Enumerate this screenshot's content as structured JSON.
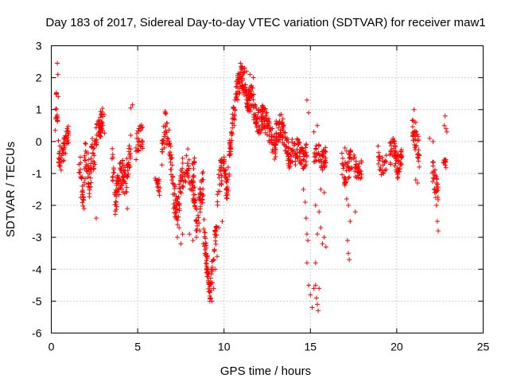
{
  "chart_data": {
    "type": "scatter",
    "title": "Day 183 of 2017, Sidereal Day-to-day VTEC variation (SDTVAR) for receiver maw1",
    "xlabel": "GPS time / hours",
    "ylabel": "SDTVAR / TECUs",
    "xlim": [
      0,
      25
    ],
    "ylim": [
      -6,
      3
    ],
    "xticks": [
      "0",
      "5",
      "10",
      "15",
      "20",
      "25"
    ],
    "yticks": [
      "3",
      "2",
      "1",
      "0",
      "-1",
      "-2",
      "-3",
      "-4",
      "-5",
      "-6"
    ],
    "grid": true,
    "marker": "+",
    "colors": {
      "series": "#ff0000",
      "grid": "#a0a0a0",
      "axes": "#000000"
    },
    "series": [
      {
        "name": "maw1",
        "segments": [
          {
            "t0": 0.2,
            "t1": 1.0,
            "keys": [
              [
                0.2,
                0.3
              ],
              [
                0.3,
                1.4
              ],
              [
                0.35,
                0.6
              ],
              [
                0.45,
                -0.5
              ],
              [
                0.6,
                -0.6
              ],
              [
                0.8,
                0.0
              ],
              [
                1.0,
                0.2
              ]
            ],
            "spread": 0.4,
            "n": 70
          },
          {
            "t0": 1.6,
            "t1": 2.4,
            "keys": [
              [
                1.6,
                -0.5
              ],
              [
                1.8,
                -1.8
              ],
              [
                2.0,
                -0.3
              ],
              [
                2.2,
                -1.2
              ],
              [
                2.4,
                -0.4
              ]
            ],
            "spread": 0.6,
            "n": 70
          },
          {
            "t0": 2.4,
            "t1": 3.1,
            "keys": [
              [
                2.4,
                -0.8
              ],
              [
                2.6,
                0.0
              ],
              [
                2.8,
                0.5
              ],
              [
                3.0,
                0.7
              ],
              [
                3.1,
                0.6
              ]
            ],
            "spread": 0.5,
            "n": 60
          },
          {
            "t0": 3.5,
            "t1": 4.6,
            "keys": [
              [
                3.5,
                -0.5
              ],
              [
                3.7,
                -1.8
              ],
              [
                3.9,
                -1.2
              ],
              [
                4.1,
                -1.0
              ],
              [
                4.3,
                -1.3
              ],
              [
                4.5,
                -0.6
              ],
              [
                4.6,
                -0.2
              ]
            ],
            "spread": 0.5,
            "n": 110
          },
          {
            "t0": 4.9,
            "t1": 5.3,
            "keys": [
              [
                4.9,
                -0.2
              ],
              [
                5.1,
                0.2
              ],
              [
                5.3,
                0.1
              ]
            ],
            "spread": 0.4,
            "n": 30
          },
          {
            "t0": 6.0,
            "t1": 6.3,
            "keys": [
              [
                6.0,
                -1.0
              ],
              [
                6.3,
                -1.5
              ]
            ],
            "spread": 0.3,
            "n": 15
          },
          {
            "t0": 6.4,
            "t1": 7.0,
            "keys": [
              [
                6.4,
                -0.5
              ],
              [
                6.6,
                0.5
              ],
              [
                6.8,
                0.0
              ],
              [
                7.0,
                -1.0
              ]
            ],
            "spread": 0.5,
            "n": 50
          },
          {
            "t0": 7.0,
            "t1": 8.3,
            "keys": [
              [
                7.0,
                -1.5
              ],
              [
                7.3,
                -2.2
              ],
              [
                7.6,
                -1.0
              ],
              [
                7.9,
                -0.6
              ],
              [
                8.1,
                -1.2
              ],
              [
                8.3,
                -1.0
              ]
            ],
            "spread": 0.5,
            "n": 100
          },
          {
            "t0": 8.2,
            "t1": 8.8,
            "keys": [
              [
                8.2,
                -1.5
              ],
              [
                8.4,
                -2.4
              ],
              [
                8.6,
                -2.0
              ],
              [
                8.8,
                -1.3
              ]
            ],
            "spread": 0.5,
            "n": 60
          },
          {
            "t0": 8.8,
            "t1": 9.6,
            "keys": [
              [
                8.8,
                -2.5
              ],
              [
                9.0,
                -3.8
              ],
              [
                9.2,
                -4.8
              ],
              [
                9.4,
                -3.5
              ],
              [
                9.6,
                -2.5
              ]
            ],
            "spread": 0.4,
            "n": 80
          },
          {
            "t0": 9.6,
            "t1": 10.3,
            "keys": [
              [
                9.6,
                -1.8
              ],
              [
                9.8,
                -1.0
              ],
              [
                10.0,
                -0.8
              ],
              [
                10.2,
                -1.5
              ],
              [
                10.3,
                -1.0
              ]
            ],
            "spread": 0.5,
            "n": 60
          },
          {
            "t0": 10.3,
            "t1": 11.0,
            "keys": [
              [
                10.3,
                -0.5
              ],
              [
                10.5,
                0.5
              ],
              [
                10.7,
                1.5
              ],
              [
                10.9,
                1.9
              ],
              [
                11.0,
                2.0
              ]
            ],
            "spread": 0.4,
            "n": 70
          },
          {
            "t0": 11.0,
            "t1": 12.0,
            "keys": [
              [
                11.0,
                2.0
              ],
              [
                11.2,
                1.8
              ],
              [
                11.4,
                1.2
              ],
              [
                11.6,
                1.4
              ],
              [
                11.8,
                0.9
              ],
              [
                12.0,
                0.5
              ]
            ],
            "spread": 0.4,
            "n": 100
          },
          {
            "t0": 12.0,
            "t1": 13.0,
            "keys": [
              [
                12.0,
                0.6
              ],
              [
                12.3,
                0.8
              ],
              [
                12.6,
                0.4
              ],
              [
                12.8,
                0.0
              ],
              [
                13.0,
                -0.3
              ]
            ],
            "spread": 0.4,
            "n": 90
          },
          {
            "t0": 13.0,
            "t1": 14.0,
            "keys": [
              [
                13.0,
                0.3
              ],
              [
                13.3,
                0.5
              ],
              [
                13.6,
                0.0
              ],
              [
                13.8,
                -0.5
              ],
              [
                14.0,
                -0.2
              ]
            ],
            "spread": 0.4,
            "n": 90
          },
          {
            "t0": 14.0,
            "t1": 14.8,
            "keys": [
              [
                14.0,
                -0.5
              ],
              [
                14.3,
                -0.2
              ],
              [
                14.6,
                -0.6
              ],
              [
                14.8,
                -0.4
              ]
            ],
            "spread": 0.4,
            "n": 60
          },
          {
            "t0": 15.2,
            "t1": 16.0,
            "keys": [
              [
                15.2,
                -0.5
              ],
              [
                15.4,
                -0.3
              ],
              [
                15.7,
                -0.6
              ],
              [
                16.0,
                -0.4
              ]
            ],
            "spread": 0.3,
            "n": 50
          },
          {
            "t0": 16.8,
            "t1": 17.4,
            "keys": [
              [
                16.8,
                -0.6
              ],
              [
                17.0,
                -1.0
              ],
              [
                17.2,
                -0.8
              ],
              [
                17.4,
                -0.5
              ]
            ],
            "spread": 0.4,
            "n": 45
          },
          {
            "t0": 17.5,
            "t1": 18.0,
            "keys": [
              [
                17.5,
                -0.6
              ],
              [
                17.7,
                -1.0
              ],
              [
                18.0,
                -0.8
              ]
            ],
            "spread": 0.3,
            "n": 30
          },
          {
            "t0": 18.9,
            "t1": 19.4,
            "keys": [
              [
                18.9,
                -0.4
              ],
              [
                19.1,
                -0.8
              ],
              [
                19.4,
                -0.6
              ]
            ],
            "spread": 0.3,
            "n": 25
          },
          {
            "t0": 19.6,
            "t1": 20.3,
            "keys": [
              [
                19.6,
                -0.4
              ],
              [
                19.8,
                -0.2
              ],
              [
                20.0,
                -0.8
              ],
              [
                20.3,
                -0.6
              ]
            ],
            "spread": 0.4,
            "n": 70
          },
          {
            "t0": 20.9,
            "t1": 21.3,
            "keys": [
              [
                20.9,
                0.5
              ],
              [
                21.1,
                0.0
              ],
              [
                21.3,
                -0.3
              ]
            ],
            "spread": 0.4,
            "n": 35
          },
          {
            "t0": 22.0,
            "t1": 22.4,
            "keys": [
              [
                22.0,
                -0.8
              ],
              [
                22.2,
                -1.2
              ],
              [
                22.4,
                -1.8
              ]
            ],
            "spread": 0.4,
            "n": 30
          },
          {
            "t0": 22.7,
            "t1": 22.9,
            "keys": [
              [
                22.7,
                -0.6
              ],
              [
                22.9,
                -0.7
              ]
            ],
            "spread": 0.15,
            "n": 12
          }
        ],
        "points": [
          [
            0.35,
            2.45
          ],
          [
            0.38,
            2.1
          ],
          [
            0.3,
            1.5
          ],
          [
            0.4,
            1.4
          ],
          [
            4.6,
            1.05
          ],
          [
            4.7,
            1.15
          ],
          [
            6.6,
            0.9
          ],
          [
            1.9,
            -2.1
          ],
          [
            2.6,
            -2.4
          ],
          [
            4.4,
            -2.1
          ],
          [
            7.4,
            -2.7
          ],
          [
            7.6,
            -2.9
          ],
          [
            7.3,
            -3.0
          ],
          [
            7.5,
            -3.2
          ],
          [
            8.0,
            -2.9
          ],
          [
            8.2,
            -3.1
          ],
          [
            8.4,
            -3.0
          ],
          [
            8.6,
            -2.8
          ],
          [
            8.8,
            -3.2
          ],
          [
            8.9,
            -3.5
          ],
          [
            9.0,
            -4.1
          ],
          [
            9.1,
            -4.4
          ],
          [
            9.15,
            -4.7
          ],
          [
            9.2,
            -4.9
          ],
          [
            9.3,
            -5.0
          ],
          [
            9.4,
            -4.6
          ],
          [
            9.5,
            -4.0
          ],
          [
            9.6,
            -3.6
          ],
          [
            9.5,
            -3.0
          ],
          [
            9.7,
            -2.7
          ],
          [
            9.9,
            -2.5
          ],
          [
            10.95,
            2.45
          ],
          [
            11.05,
            2.35
          ],
          [
            11.2,
            2.3
          ],
          [
            11.3,
            2.2
          ],
          [
            11.5,
            2.1
          ],
          [
            11.7,
            2.0
          ],
          [
            14.8,
            1.3
          ],
          [
            14.9,
            0.9
          ],
          [
            14.6,
            -1.5
          ],
          [
            14.7,
            -1.9
          ],
          [
            14.75,
            -2.4
          ],
          [
            14.8,
            -2.9
          ],
          [
            14.85,
            -3.1
          ],
          [
            14.8,
            -3.8
          ],
          [
            14.9,
            -4.5
          ],
          [
            15.0,
            -4.8
          ],
          [
            15.1,
            -5.2
          ],
          [
            15.2,
            -4.6
          ],
          [
            15.35,
            -4.9
          ],
          [
            15.4,
            -5.1
          ],
          [
            15.3,
            -4.5
          ],
          [
            15.45,
            -5.3
          ],
          [
            15.5,
            -4.6
          ],
          [
            15.3,
            -3.8
          ],
          [
            15.4,
            -2.9
          ],
          [
            15.5,
            -2.2
          ],
          [
            15.3,
            -2.0
          ],
          [
            15.6,
            -2.7
          ],
          [
            15.7,
            -3.2
          ],
          [
            15.8,
            -3.0
          ],
          [
            15.9,
            -3.3
          ],
          [
            15.6,
            -1.5
          ],
          [
            15.8,
            -1.6
          ],
          [
            15.2,
            0.3
          ],
          [
            15.4,
            0.5
          ],
          [
            17.15,
            -3.1
          ],
          [
            17.2,
            -3.5
          ],
          [
            17.25,
            -3.7
          ],
          [
            17.3,
            -2.5
          ],
          [
            17.2,
            -2.0
          ],
          [
            17.1,
            -1.8
          ],
          [
            17.6,
            -2.2
          ],
          [
            17.0,
            -0.2
          ],
          [
            17.3,
            -0.3
          ],
          [
            17.1,
            -0.3
          ],
          [
            21.0,
            1.0
          ],
          [
            21.1,
            0.6
          ],
          [
            21.2,
            -1.3
          ],
          [
            21.1,
            -1.2
          ],
          [
            21.3,
            -0.8
          ],
          [
            21.9,
            0.1
          ],
          [
            22.1,
            0.0
          ],
          [
            22.2,
            -1.6
          ],
          [
            22.3,
            -2.0
          ],
          [
            22.35,
            -2.5
          ],
          [
            22.4,
            -2.8
          ],
          [
            22.8,
            0.8
          ],
          [
            22.85,
            0.4
          ],
          [
            22.9,
            0.3
          ],
          [
            22.75,
            0.5
          ]
        ]
      }
    ]
  }
}
